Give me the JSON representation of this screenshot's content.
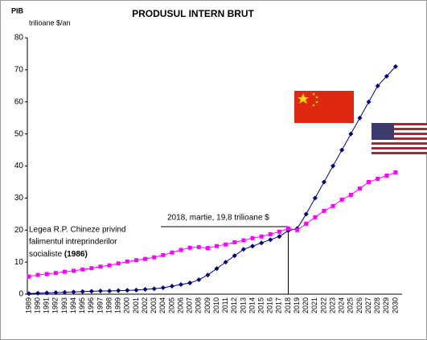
{
  "chart_data": {
    "type": "line",
    "title": "PRODUSUL INTERN BRUT",
    "y_label": "PIB",
    "y_unit": "trilioane $/an",
    "categories": [
      "1989",
      "1990",
      "1991",
      "1992",
      "1993",
      "1994",
      "1995",
      "1996",
      "1997",
      "1998",
      "1999",
      "2000",
      "2001",
      "2002",
      "2003",
      "2004",
      "2005",
      "2006",
      "2007",
      "2008",
      "2009",
      "2010",
      "2011",
      "2012",
      "2013",
      "2014",
      "2015",
      "2016",
      "2017",
      "2018",
      "2019",
      "2020",
      "2021",
      "2022",
      "2023",
      "2024",
      "2025",
      "2026",
      "2027",
      "2028",
      "2029",
      "2030"
    ],
    "series": [
      {
        "color": "#000080",
        "marker": "diamond",
        "values": [
          0.2,
          0.3,
          0.4,
          0.5,
          0.6,
          0.7,
          0.8,
          0.9,
          1.0,
          1.0,
          1.1,
          1.2,
          1.3,
          1.5,
          1.7,
          2.0,
          2.5,
          3.0,
          3.5,
          4.5,
          6,
          8,
          10,
          12,
          14,
          15,
          16,
          17,
          18,
          19.8,
          20.5,
          25,
          30,
          35,
          40,
          45,
          50,
          55,
          60,
          65,
          68,
          71
        ]
      },
      {
        "color": "#ff00ff",
        "marker": "square",
        "values": [
          5.5,
          6,
          6.3,
          6.6,
          7,
          7.3,
          7.7,
          8.1,
          8.6,
          9,
          9.6,
          10.2,
          10.6,
          11,
          11.5,
          12.2,
          13,
          13.8,
          14.5,
          14.7,
          14.4,
          15,
          15.5,
          16.2,
          16.8,
          17.5,
          18,
          18.7,
          19.5,
          20.5,
          20,
          22,
          24,
          26,
          27.5,
          29.5,
          31,
          33,
          35,
          36,
          37,
          38
        ]
      }
    ],
    "ylim": [
      0,
      80
    ],
    "yticks": [
      0,
      10,
      20,
      30,
      40,
      50,
      60,
      70,
      80
    ],
    "annotation": {
      "text": "2018, martie, 19,8 trilioane $",
      "x": "2018",
      "y": 19.8
    },
    "note": {
      "lines": [
        "Legea R.P. Chineze privind",
        "falimentul intreprinderilor",
        "socialiste "
      ],
      "bold": "(1986)"
    }
  }
}
